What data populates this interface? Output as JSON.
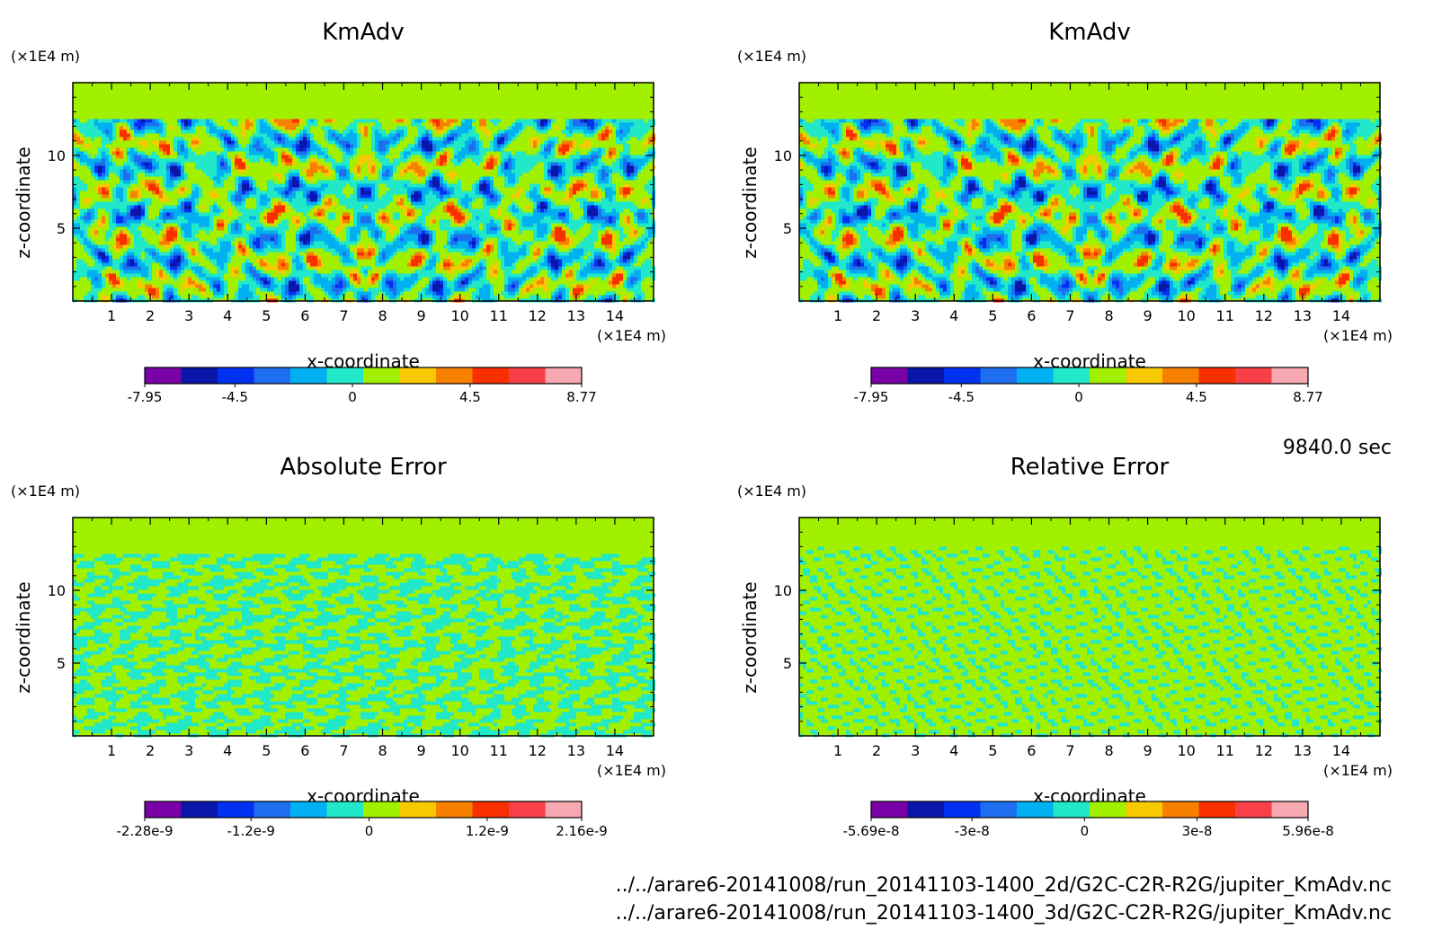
{
  "time_label": "9840.0 sec",
  "footer": {
    "lines": [
      "../../arare6-20141008/run_20141103-1400_2d/G2C-C2R-R2G/jupiter_KmAdv.nc",
      "../../arare6-20141008/run_20141103-1400_3d/G2C-C2R-R2G/jupiter_KmAdv.nc"
    ]
  },
  "palette": [
    "#7a00a8",
    "#0a16a8",
    "#0030f0",
    "#1e6ef0",
    "#00b0f0",
    "#20e8c8",
    "#a0f000",
    "#f8c800",
    "#f88000",
    "#f83000",
    "#f84048",
    "#f8a8b0"
  ],
  "chart_data": [
    {
      "type": "heatmap",
      "title": "KmAdv",
      "xlabel": "x-coordinate",
      "ylabel": "z-coordinate",
      "x_unit": "(×1E4 m)",
      "y_unit": "(×1E4 m)",
      "xlim": [
        0,
        15
      ],
      "ylim": [
        0,
        15
      ],
      "x_ticks": [
        "1",
        "2",
        "3",
        "4",
        "5",
        "6",
        "7",
        "8",
        "9",
        "10",
        "11",
        "12",
        "13",
        "14"
      ],
      "y_ticks": [
        "5",
        "10"
      ],
      "pattern": "field",
      "colorbar": {
        "min": -7.95,
        "max": 8.77,
        "labels": [
          "-7.95",
          "-4.5",
          "0",
          "4.5",
          "8.77"
        ]
      }
    },
    {
      "type": "heatmap",
      "title": "KmAdv",
      "xlabel": "x-coordinate",
      "ylabel": "z-coordinate",
      "x_unit": "(×1E4 m)",
      "y_unit": "(×1E4 m)",
      "xlim": [
        0,
        15
      ],
      "ylim": [
        0,
        15
      ],
      "x_ticks": [
        "1",
        "2",
        "3",
        "4",
        "5",
        "6",
        "7",
        "8",
        "9",
        "10",
        "11",
        "12",
        "13",
        "14"
      ],
      "y_ticks": [
        "5",
        "10"
      ],
      "pattern": "field",
      "colorbar": {
        "min": -7.95,
        "max": 8.77,
        "labels": [
          "-7.95",
          "-4.5",
          "0",
          "4.5",
          "8.77"
        ]
      }
    },
    {
      "type": "heatmap",
      "title": "Absolute Error",
      "xlabel": "x-coordinate",
      "ylabel": "z-coordinate",
      "x_unit": "(×1E4 m)",
      "y_unit": "(×1E4 m)",
      "xlim": [
        0,
        15
      ],
      "ylim": [
        0,
        15
      ],
      "x_ticks": [
        "1",
        "2",
        "3",
        "4",
        "5",
        "6",
        "7",
        "8",
        "9",
        "10",
        "11",
        "12",
        "13",
        "14"
      ],
      "y_ticks": [
        "5",
        "10"
      ],
      "pattern": "abs_error",
      "colorbar": {
        "min": -2.28e-09,
        "max": 2.16e-09,
        "labels": [
          "-2.28e-9",
          "-1.2e-9",
          "0",
          "1.2e-9",
          "2.16e-9"
        ]
      }
    },
    {
      "type": "heatmap",
      "title": "Relative Error",
      "xlabel": "x-coordinate",
      "ylabel": "z-coordinate",
      "x_unit": "(×1E4 m)",
      "y_unit": "(×1E4 m)",
      "xlim": [
        0,
        15
      ],
      "ylim": [
        0,
        15
      ],
      "x_ticks": [
        "1",
        "2",
        "3",
        "4",
        "5",
        "6",
        "7",
        "8",
        "9",
        "10",
        "11",
        "12",
        "13",
        "14"
      ],
      "y_ticks": [
        "5",
        "10"
      ],
      "pattern": "rel_error",
      "colorbar": {
        "min": -5.69e-08,
        "max": 5.96e-08,
        "labels": [
          "-5.69e-8",
          "-3e-8",
          "0",
          "3e-8",
          "5.96e-8"
        ]
      }
    }
  ]
}
